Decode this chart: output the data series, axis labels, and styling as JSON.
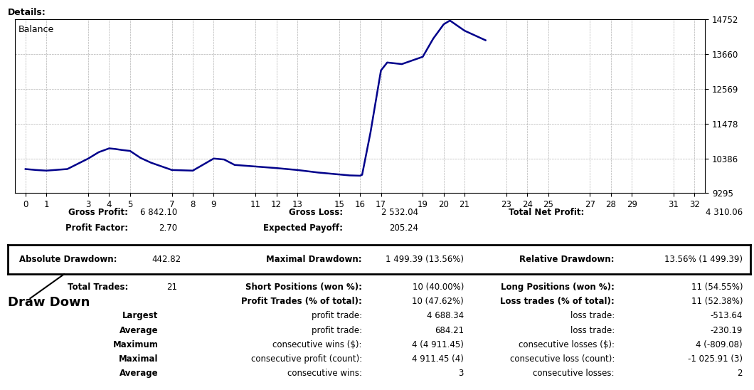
{
  "title": "Details:",
  "chart_label": "Balance",
  "line_color": "#00008B",
  "background_color": "#ffffff",
  "chart_bg": "#ffffff",
  "y_ticks": [
    9295,
    10386,
    11478,
    12569,
    13660,
    14752
  ],
  "x_ticks": [
    0,
    1,
    3,
    4,
    5,
    7,
    8,
    9,
    11,
    12,
    13,
    15,
    16,
    17,
    19,
    20,
    21,
    23,
    24,
    25,
    27,
    28,
    29,
    31,
    32
  ],
  "x_data": [
    0,
    0.5,
    1,
    2,
    3,
    3.5,
    4,
    4.3,
    4.6,
    5,
    5.5,
    6,
    7,
    8,
    9,
    9.5,
    10,
    11,
    12,
    13,
    14,
    15,
    15.5,
    16,
    16.1,
    16.5,
    17,
    17.3,
    18,
    19,
    19.5,
    20,
    20.3,
    21,
    22
  ],
  "y_data": [
    10050,
    10020,
    10000,
    10050,
    10380,
    10580,
    10700,
    10680,
    10650,
    10620,
    10400,
    10250,
    10020,
    10000,
    10380,
    10350,
    10180,
    10130,
    10080,
    10020,
    9940,
    9880,
    9850,
    9840,
    9870,
    11200,
    13150,
    13400,
    13350,
    13580,
    14150,
    14600,
    14720,
    14400,
    14100
  ],
  "gross_profit": "6 842.10",
  "gross_loss": "2 532.04",
  "total_net_profit": "4 310.06",
  "profit_factor": "2.70",
  "expected_payoff": "205.24",
  "absolute_drawdown": "442.82",
  "maximal_drawdown": "1 499.39 (13.56%)",
  "relative_drawdown": "13.56% (1 499.39)",
  "total_trades": "21",
  "short_positions": "10 (40.00%)",
  "long_positions": "11 (54.55%)",
  "profit_trades": "10 (47.62%)",
  "loss_trades": "11 (52.38%)",
  "largest_profit": "4 688.34",
  "largest_loss": "-513.64",
  "average_profit": "684.21",
  "average_loss": "-230.19",
  "max_consec_wins": "4 (4 911.45)",
  "max_consec_losses": "4 (-809.08)",
  "maximal_consec_profit": "4 911.45 (4)",
  "maximal_consec_loss": "-1 025.91 (3)",
  "avg_consec_wins": "3",
  "avg_consec_losses": "2"
}
